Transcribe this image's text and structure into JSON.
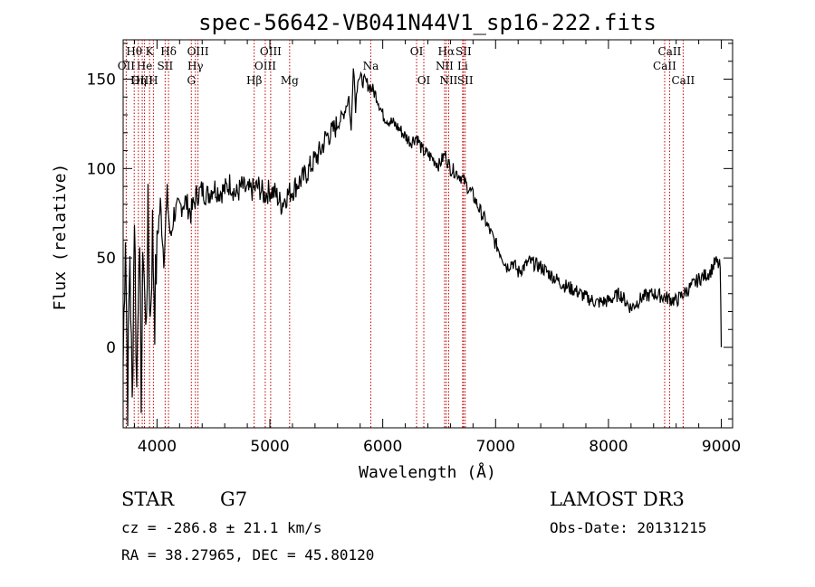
{
  "chart_data": {
    "type": "line",
    "title": "spec-56642-VB041N44V1_sp16-222.fits",
    "xlabel": "Wavelength (Å)",
    "ylabel": "Flux (relative)",
    "xlim": [
      3700,
      9100
    ],
    "ylim": [
      -45,
      172
    ],
    "x_ticks": [
      4000,
      5000,
      6000,
      7000,
      8000,
      9000
    ],
    "y_ticks": [
      0,
      50,
      100,
      150
    ],
    "series": [
      {
        "name": "flux",
        "x": [
          3700,
          3720,
          3740,
          3760,
          3780,
          3800,
          3820,
          3840,
          3860,
          3880,
          3900,
          3920,
          3940,
          3960,
          3980,
          4000,
          4030,
          4060,
          4090,
          4120,
          4150,
          4200,
          4250,
          4300,
          4350,
          4400,
          4450,
          4500,
          4550,
          4600,
          4650,
          4700,
          4750,
          4800,
          4850,
          4900,
          4950,
          5000,
          5050,
          5100,
          5150,
          5200,
          5250,
          5300,
          5350,
          5400,
          5450,
          5500,
          5550,
          5600,
          5650,
          5700,
          5720,
          5740,
          5760,
          5780,
          5800,
          5850,
          5900,
          5950,
          6000,
          6050,
          6100,
          6150,
          6200,
          6250,
          6300,
          6350,
          6400,
          6450,
          6500,
          6550,
          6600,
          6650,
          6700,
          6750,
          6800,
          6850,
          6900,
          6950,
          7000,
          7050,
          7100,
          7150,
          7200,
          7300,
          7400,
          7500,
          7600,
          7700,
          7800,
          7900,
          8000,
          8100,
          8200,
          8300,
          8400,
          8500,
          8600,
          8700,
          8800,
          8900,
          8950,
          8990,
          9000
        ],
        "y": [
          -10,
          70,
          -30,
          55,
          -35,
          80,
          -25,
          65,
          -20,
          60,
          5,
          70,
          15,
          65,
          20,
          60,
          80,
          50,
          85,
          60,
          75,
          78,
          82,
          75,
          85,
          88,
          85,
          90,
          87,
          88,
          92,
          85,
          90,
          87,
          88,
          90,
          85,
          88,
          86,
          80,
          85,
          88,
          92,
          95,
          100,
          105,
          110,
          118,
          120,
          125,
          130,
          140,
          120,
          160,
          135,
          152,
          150,
          148,
          145,
          140,
          130,
          127,
          125,
          122,
          118,
          115,
          118,
          110,
          108,
          105,
          102,
          108,
          100,
          98,
          95,
          90,
          85,
          78,
          72,
          65,
          58,
          52,
          45,
          48,
          42,
          48,
          45,
          40,
          35,
          32,
          28,
          25,
          26,
          30,
          22,
          28,
          30,
          28,
          26,
          32,
          38,
          42,
          48,
          45,
          0
        ]
      }
    ],
    "lines": [
      {
        "name": "Hθ",
        "wl": 3798,
        "row": 0
      },
      {
        "name": "OII",
        "wl": 3727,
        "row": 1
      },
      {
        "name": "OIII",
        "wl": 3869,
        "row": 2
      },
      {
        "name": "K",
        "wl": 3934,
        "row": 0
      },
      {
        "name": "He",
        "wl": 3889,
        "row": 1
      },
      {
        "name": "Hη",
        "wl": 3835,
        "row": 2
      },
      {
        "name": "Hδ",
        "wl": 4102,
        "row": 0
      },
      {
        "name": "SII",
        "wl": 4072,
        "row": 1
      },
      {
        "name": "H",
        "wl": 3968,
        "row": 2
      },
      {
        "name": "OIII",
        "wl": 4363,
        "row": 0
      },
      {
        "name": "Hγ",
        "wl": 4340,
        "row": 1
      },
      {
        "name": "G",
        "wl": 4304,
        "row": 2
      },
      {
        "name": "OIII",
        "wl": 5007,
        "row": 0
      },
      {
        "name": "OIII",
        "wl": 4959,
        "row": 1
      },
      {
        "name": "Hβ",
        "wl": 4861,
        "row": 2
      },
      {
        "name": "Mg",
        "wl": 5175,
        "row": 2
      },
      {
        "name": "Na",
        "wl": 5894,
        "row": 1
      },
      {
        "name": "OI",
        "wl": 6300,
        "row": 0
      },
      {
        "name": "OI",
        "wl": 6364,
        "row": 2
      },
      {
        "name": "Hα",
        "wl": 6563,
        "row": 0
      },
      {
        "name": "NII",
        "wl": 6548,
        "row": 1
      },
      {
        "name": "NII",
        "wl": 6584,
        "row": 2
      },
      {
        "name": "SII",
        "wl": 6716,
        "row": 0
      },
      {
        "name": "Li",
        "wl": 6708,
        "row": 1
      },
      {
        "name": "SII",
        "wl": 6731,
        "row": 2
      },
      {
        "name": "CaII",
        "wl": 8542,
        "row": 0
      },
      {
        "name": "CaII",
        "wl": 8498,
        "row": 1
      },
      {
        "name": "CaII",
        "wl": 8662,
        "row": 2
      }
    ]
  },
  "info": {
    "class_label": "STAR",
    "subclass": "G7",
    "survey": "LAMOST DR3",
    "cz": "cz = -286.8 ± 21.1 km/s",
    "obs_date": "Obs-Date: 20131215",
    "coords": "RA =  38.27965, DEC =  45.80120"
  },
  "colors": {
    "spectrum": "#000000",
    "line_marker": "#c00000"
  }
}
